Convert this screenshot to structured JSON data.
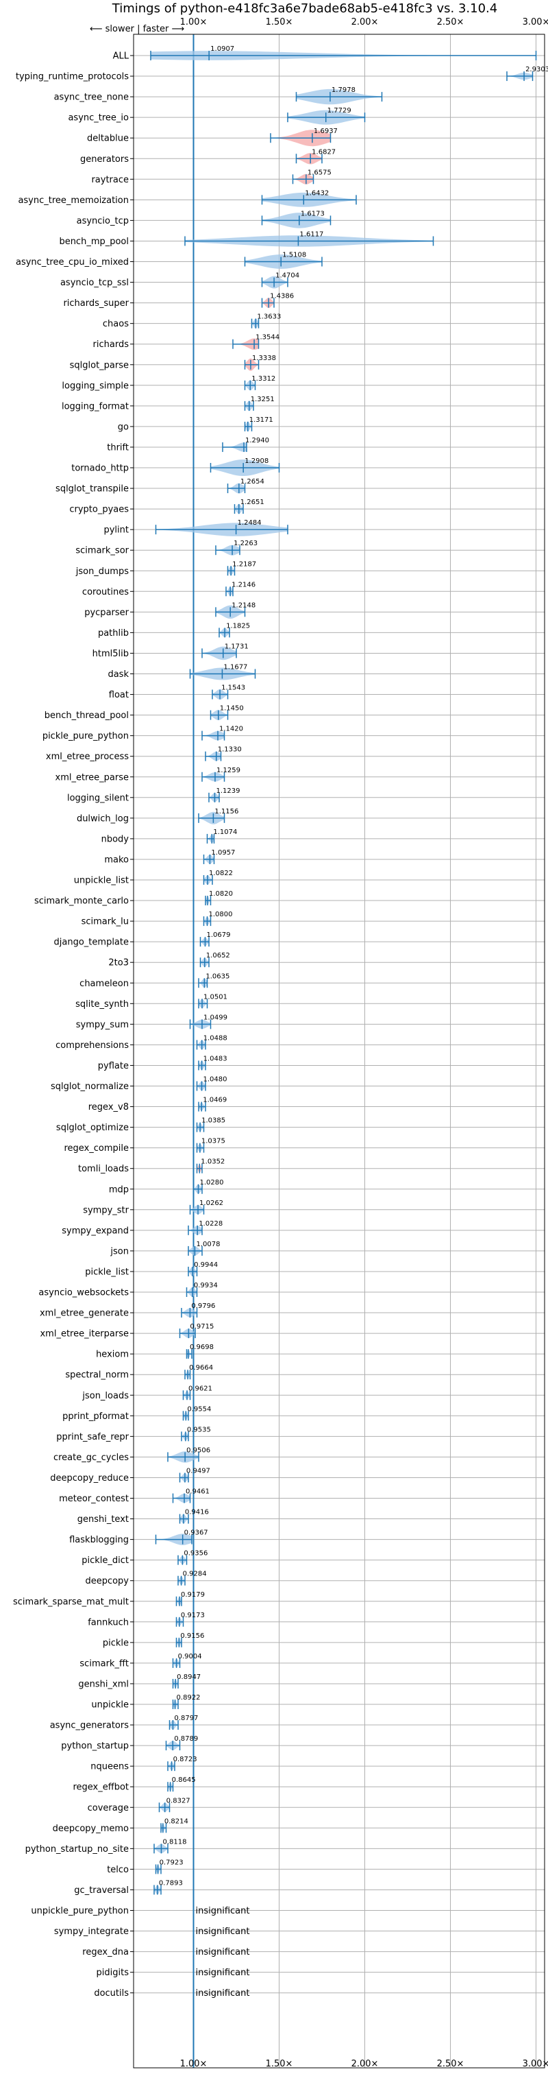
{
  "chart_data": {
    "type": "violin",
    "title": "Timings of python-e418fc3a6e7bade68ab5-e418fc3 vs. 3.10.4",
    "direction_label": "⟵ slower | faster ⟶",
    "xlim": [
      0.65,
      3.05
    ],
    "xticks": [
      {
        "value": 1.0,
        "label": "1.00×"
      },
      {
        "value": 1.5,
        "label": "1.50×"
      },
      {
        "value": 2.0,
        "label": "2.00×"
      },
      {
        "value": 2.5,
        "label": "2.50×"
      },
      {
        "value": 3.0,
        "label": "3.00×"
      }
    ],
    "grid": true,
    "insignificant_label": "insignificant",
    "colors": {
      "faster": "#1f77b4",
      "slower": "#d62728",
      "reference": "#1f77b4",
      "grid": "#b0b0b0"
    },
    "benchmarks": [
      {
        "name": "ALL",
        "value": 1.0907,
        "min": 0.75,
        "max": 3.0,
        "width": 0.45,
        "label": "1.0907"
      },
      {
        "name": "typing_runtime_protocols",
        "value": 2.9303,
        "min": 2.83,
        "max": 2.98,
        "width": 0.35,
        "label": "2.9303"
      },
      {
        "name": "async_tree_none",
        "value": 1.7978,
        "min": 1.6,
        "max": 2.1,
        "width": 0.75,
        "label": "1.7978"
      },
      {
        "name": "async_tree_io",
        "value": 1.7729,
        "min": 1.55,
        "max": 2.0,
        "width": 0.7,
        "label": "1.7729"
      },
      {
        "name": "deltablue",
        "value": 1.6937,
        "min": 1.45,
        "max": 1.8,
        "width": 0.8,
        "label": "1.6937",
        "slower_color": true
      },
      {
        "name": "generators",
        "value": 1.6827,
        "min": 1.6,
        "max": 1.75,
        "width": 0.55,
        "label": "1.6827",
        "slower_color": true
      },
      {
        "name": "raytrace",
        "value": 1.6575,
        "min": 1.58,
        "max": 1.7,
        "width": 0.5,
        "label": "1.6575",
        "slower_color": true
      },
      {
        "name": "async_tree_memoization",
        "value": 1.6432,
        "min": 1.4,
        "max": 1.95,
        "width": 0.7,
        "label": "1.6432"
      },
      {
        "name": "asyncio_tcp",
        "value": 1.6173,
        "min": 1.4,
        "max": 1.8,
        "width": 0.75,
        "label": "1.6173"
      },
      {
        "name": "bench_mp_pool",
        "value": 1.6117,
        "min": 0.95,
        "max": 2.4,
        "width": 0.55,
        "label": "1.6117"
      },
      {
        "name": "async_tree_cpu_io_mixed",
        "value": 1.5108,
        "min": 1.3,
        "max": 1.75,
        "width": 0.7,
        "label": "1.5108"
      },
      {
        "name": "asyncio_tcp_ssl",
        "value": 1.4704,
        "min": 1.4,
        "max": 1.55,
        "width": 0.6,
        "label": "1.4704"
      },
      {
        "name": "richards_super",
        "value": 1.4386,
        "min": 1.4,
        "max": 1.47,
        "width": 0.5,
        "label": "1.4386",
        "slower_color": true
      },
      {
        "name": "chaos",
        "value": 1.3633,
        "min": 1.34,
        "max": 1.38,
        "width": 0.5,
        "label": "1.3633"
      },
      {
        "name": "richards",
        "value": 1.3544,
        "min": 1.23,
        "max": 1.38,
        "width": 0.55,
        "label": "1.3544",
        "slower_color": true
      },
      {
        "name": "sqlglot_parse",
        "value": 1.3338,
        "min": 1.3,
        "max": 1.38,
        "width": 0.6,
        "label": "1.3338",
        "slower_color": true
      },
      {
        "name": "logging_simple",
        "value": 1.3312,
        "min": 1.3,
        "max": 1.36,
        "width": 0.5,
        "label": "1.3312"
      },
      {
        "name": "logging_format",
        "value": 1.3251,
        "min": 1.3,
        "max": 1.35,
        "width": 0.5,
        "label": "1.3251"
      },
      {
        "name": "go",
        "value": 1.3171,
        "min": 1.3,
        "max": 1.34,
        "width": 0.5,
        "label": "1.3171"
      },
      {
        "name": "thrift",
        "value": 1.294,
        "min": 1.17,
        "max": 1.31,
        "width": 0.45,
        "label": "1.2940"
      },
      {
        "name": "tornado_http",
        "value": 1.2908,
        "min": 1.1,
        "max": 1.5,
        "width": 0.8,
        "label": "1.2908"
      },
      {
        "name": "sqlglot_transpile",
        "value": 1.2654,
        "min": 1.2,
        "max": 1.3,
        "width": 0.5,
        "label": "1.2654"
      },
      {
        "name": "crypto_pyaes",
        "value": 1.2651,
        "min": 1.24,
        "max": 1.29,
        "width": 0.5,
        "label": "1.2651"
      },
      {
        "name": "pylint",
        "value": 1.2484,
        "min": 0.78,
        "max": 1.55,
        "width": 0.65,
        "label": "1.2484"
      },
      {
        "name": "scimark_sor",
        "value": 1.2263,
        "min": 1.13,
        "max": 1.27,
        "width": 0.5,
        "label": "1.2263"
      },
      {
        "name": "json_dumps",
        "value": 1.2187,
        "min": 1.2,
        "max": 1.24,
        "width": 0.45,
        "label": "1.2187"
      },
      {
        "name": "coroutines",
        "value": 1.2146,
        "min": 1.19,
        "max": 1.23,
        "width": 0.45,
        "label": "1.2146"
      },
      {
        "name": "pycparser",
        "value": 1.2148,
        "min": 1.13,
        "max": 1.3,
        "width": 0.65,
        "label": "1.2148"
      },
      {
        "name": "pathlib",
        "value": 1.1825,
        "min": 1.15,
        "max": 1.21,
        "width": 0.45,
        "label": "1.1825"
      },
      {
        "name": "html5lib",
        "value": 1.1731,
        "min": 1.05,
        "max": 1.25,
        "width": 0.65,
        "label": "1.1731"
      },
      {
        "name": "dask",
        "value": 1.1677,
        "min": 0.98,
        "max": 1.36,
        "width": 0.6,
        "label": "1.1677"
      },
      {
        "name": "float",
        "value": 1.1543,
        "min": 1.11,
        "max": 1.2,
        "width": 0.5,
        "label": "1.1543"
      },
      {
        "name": "bench_thread_pool",
        "value": 1.145,
        "min": 1.1,
        "max": 1.2,
        "width": 0.5,
        "label": "1.1450"
      },
      {
        "name": "pickle_pure_python",
        "value": 1.142,
        "min": 1.05,
        "max": 1.18,
        "width": 0.45,
        "label": "1.1420"
      },
      {
        "name": "xml_etree_process",
        "value": 1.133,
        "min": 1.07,
        "max": 1.16,
        "width": 0.45,
        "label": "1.1330"
      },
      {
        "name": "xml_etree_parse",
        "value": 1.1259,
        "min": 1.05,
        "max": 1.18,
        "width": 0.45,
        "label": "1.1259"
      },
      {
        "name": "logging_silent",
        "value": 1.1239,
        "min": 1.09,
        "max": 1.15,
        "width": 0.45,
        "label": "1.1239"
      },
      {
        "name": "dulwich_log",
        "value": 1.1156,
        "min": 1.03,
        "max": 1.18,
        "width": 0.6,
        "label": "1.1156"
      },
      {
        "name": "nbody",
        "value": 1.1074,
        "min": 1.08,
        "max": 1.12,
        "width": 0.4,
        "label": "1.1074"
      },
      {
        "name": "mako",
        "value": 1.0957,
        "min": 1.06,
        "max": 1.12,
        "width": 0.45,
        "label": "1.0957"
      },
      {
        "name": "unpickle_list",
        "value": 1.0822,
        "min": 1.06,
        "max": 1.11,
        "width": 0.45,
        "label": "1.0822"
      },
      {
        "name": "scimark_monte_carlo",
        "value": 1.082,
        "min": 1.07,
        "max": 1.1,
        "width": 0.4,
        "label": "1.0820"
      },
      {
        "name": "scimark_lu",
        "value": 1.08,
        "min": 1.06,
        "max": 1.1,
        "width": 0.4,
        "label": "1.0800"
      },
      {
        "name": "django_template",
        "value": 1.0679,
        "min": 1.04,
        "max": 1.09,
        "width": 0.4,
        "label": "1.0679"
      },
      {
        "name": "2to3",
        "value": 1.0652,
        "min": 1.04,
        "max": 1.09,
        "width": 0.45,
        "label": "1.0652"
      },
      {
        "name": "chameleon",
        "value": 1.0635,
        "min": 1.03,
        "max": 1.08,
        "width": 0.45,
        "label": "1.0635"
      },
      {
        "name": "sqlite_synth",
        "value": 1.0501,
        "min": 1.03,
        "max": 1.08,
        "width": 0.45,
        "label": "1.0501"
      },
      {
        "name": "sympy_sum",
        "value": 1.0499,
        "min": 0.98,
        "max": 1.1,
        "width": 0.45,
        "label": "1.0499"
      },
      {
        "name": "comprehensions",
        "value": 1.0488,
        "min": 1.02,
        "max": 1.07,
        "width": 0.45,
        "label": "1.0488"
      },
      {
        "name": "pyflate",
        "value": 1.0483,
        "min": 1.03,
        "max": 1.07,
        "width": 0.45,
        "label": "1.0483"
      },
      {
        "name": "sqlglot_normalize",
        "value": 1.048,
        "min": 1.02,
        "max": 1.07,
        "width": 0.45,
        "label": "1.0480"
      },
      {
        "name": "regex_v8",
        "value": 1.0469,
        "min": 1.03,
        "max": 1.07,
        "width": 0.4,
        "label": "1.0469"
      },
      {
        "name": "sqlglot_optimize",
        "value": 1.0385,
        "min": 1.02,
        "max": 1.06,
        "width": 0.4,
        "label": "1.0385"
      },
      {
        "name": "regex_compile",
        "value": 1.0375,
        "min": 1.02,
        "max": 1.06,
        "width": 0.4,
        "label": "1.0375"
      },
      {
        "name": "tomli_loads",
        "value": 1.0352,
        "min": 1.02,
        "max": 1.05,
        "width": 0.4,
        "label": "1.0352",
        "slower_color": true
      },
      {
        "name": "mdp",
        "value": 1.028,
        "min": 1.0,
        "max": 1.05,
        "width": 0.45,
        "label": "1.0280"
      },
      {
        "name": "sympy_str",
        "value": 1.0262,
        "min": 0.98,
        "max": 1.06,
        "width": 0.45,
        "label": "1.0262"
      },
      {
        "name": "sympy_expand",
        "value": 1.0228,
        "min": 0.97,
        "max": 1.05,
        "width": 0.45,
        "label": "1.0228"
      },
      {
        "name": "json",
        "value": 1.0078,
        "min": 0.97,
        "max": 1.05,
        "width": 0.45,
        "label": "1.0078"
      },
      {
        "name": "pickle_list",
        "value": 0.9944,
        "min": 0.97,
        "max": 1.02,
        "width": 0.45,
        "label": "0.9944"
      },
      {
        "name": "asyncio_websockets",
        "value": 0.9934,
        "min": 0.96,
        "max": 1.02,
        "width": 0.45,
        "label": "0.9934"
      },
      {
        "name": "xml_etree_generate",
        "value": 0.9796,
        "min": 0.93,
        "max": 1.02,
        "width": 0.45,
        "label": "0.9796"
      },
      {
        "name": "xml_etree_iterparse",
        "value": 0.9715,
        "min": 0.92,
        "max": 1.01,
        "width": 0.45,
        "label": "0.9715"
      },
      {
        "name": "hexiom",
        "value": 0.9698,
        "min": 0.96,
        "max": 0.99,
        "width": 0.4,
        "label": "0.9698"
      },
      {
        "name": "spectral_norm",
        "value": 0.9664,
        "min": 0.95,
        "max": 0.98,
        "width": 0.4,
        "label": "0.9664"
      },
      {
        "name": "json_loads",
        "value": 0.9621,
        "min": 0.94,
        "max": 0.98,
        "width": 0.4,
        "label": "0.9621"
      },
      {
        "name": "pprint_pformat",
        "value": 0.9554,
        "min": 0.94,
        "max": 0.97,
        "width": 0.4,
        "label": "0.9554"
      },
      {
        "name": "pprint_safe_repr",
        "value": 0.9535,
        "min": 0.93,
        "max": 0.97,
        "width": 0.4,
        "label": "0.9535"
      },
      {
        "name": "create_gc_cycles",
        "value": 0.9506,
        "min": 0.85,
        "max": 1.03,
        "width": 0.55,
        "label": "0.9506"
      },
      {
        "name": "deepcopy_reduce",
        "value": 0.9497,
        "min": 0.92,
        "max": 0.97,
        "width": 0.45,
        "label": "0.9497"
      },
      {
        "name": "meteor_contest",
        "value": 0.9461,
        "min": 0.88,
        "max": 0.98,
        "width": 0.45,
        "label": "0.9461"
      },
      {
        "name": "genshi_text",
        "value": 0.9416,
        "min": 0.92,
        "max": 0.97,
        "width": 0.45,
        "label": "0.9416"
      },
      {
        "name": "flaskblogging",
        "value": 0.9367,
        "min": 0.78,
        "max": 0.99,
        "width": 0.55,
        "label": "0.9367"
      },
      {
        "name": "pickle_dict",
        "value": 0.9356,
        "min": 0.91,
        "max": 0.96,
        "width": 0.4,
        "label": "0.9356"
      },
      {
        "name": "deepcopy",
        "value": 0.9284,
        "min": 0.91,
        "max": 0.95,
        "width": 0.4,
        "label": "0.9284"
      },
      {
        "name": "scimark_sparse_mat_mult",
        "value": 0.9179,
        "min": 0.9,
        "max": 0.93,
        "width": 0.4,
        "label": "0.9179"
      },
      {
        "name": "fannkuch",
        "value": 0.9173,
        "min": 0.9,
        "max": 0.94,
        "width": 0.4,
        "label": "0.9173"
      },
      {
        "name": "pickle",
        "value": 0.9156,
        "min": 0.9,
        "max": 0.93,
        "width": 0.4,
        "label": "0.9156"
      },
      {
        "name": "scimark_fft",
        "value": 0.9004,
        "min": 0.88,
        "max": 0.92,
        "width": 0.4,
        "label": "0.9004"
      },
      {
        "name": "genshi_xml",
        "value": 0.8947,
        "min": 0.88,
        "max": 0.91,
        "width": 0.4,
        "label": "0.8947"
      },
      {
        "name": "unpickle",
        "value": 0.8922,
        "min": 0.88,
        "max": 0.91,
        "width": 0.4,
        "label": "0.8922"
      },
      {
        "name": "async_generators",
        "value": 0.8797,
        "min": 0.86,
        "max": 0.91,
        "width": 0.45,
        "label": "0.8797"
      },
      {
        "name": "python_startup",
        "value": 0.8789,
        "min": 0.84,
        "max": 0.92,
        "width": 0.45,
        "label": "0.8789"
      },
      {
        "name": "nqueens",
        "value": 0.8723,
        "min": 0.85,
        "max": 0.89,
        "width": 0.4,
        "label": "0.8723"
      },
      {
        "name": "regex_effbot",
        "value": 0.8645,
        "min": 0.85,
        "max": 0.88,
        "width": 0.4,
        "label": "0.8645"
      },
      {
        "name": "coverage",
        "value": 0.8327,
        "min": 0.8,
        "max": 0.86,
        "width": 0.45,
        "label": "0.8327"
      },
      {
        "name": "deepcopy_memo",
        "value": 0.8214,
        "min": 0.81,
        "max": 0.84,
        "width": 0.4,
        "label": "0.8214"
      },
      {
        "name": "python_startup_no_site",
        "value": 0.8118,
        "min": 0.77,
        "max": 0.85,
        "width": 0.45,
        "label": "0.8118"
      },
      {
        "name": "telco",
        "value": 0.7923,
        "min": 0.78,
        "max": 0.81,
        "width": 0.4,
        "label": "0.7923"
      },
      {
        "name": "gc_traversal",
        "value": 0.7893,
        "min": 0.77,
        "max": 0.81,
        "width": 0.45,
        "label": "0.7893"
      },
      {
        "name": "unpickle_pure_python",
        "insignificant": true
      },
      {
        "name": "sympy_integrate",
        "insignificant": true
      },
      {
        "name": "regex_dna",
        "insignificant": true
      },
      {
        "name": "pidigits",
        "insignificant": true
      },
      {
        "name": "docutils",
        "insignificant": true
      }
    ]
  }
}
